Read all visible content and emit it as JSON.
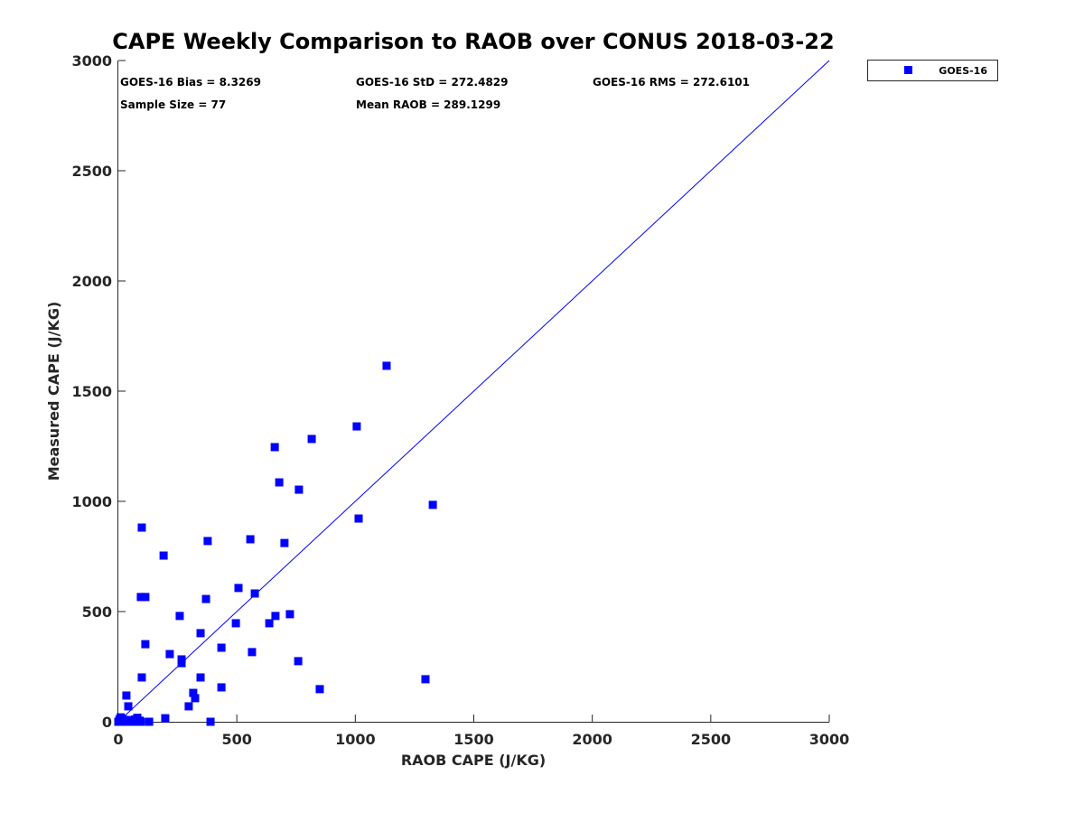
{
  "chart_data": {
    "type": "scatter",
    "title": "CAPE Weekly Comparison to RAOB over CONUS 2018-03-22",
    "xlabel": "RAOB CAPE (J/KG)",
    "ylabel": "Measured CAPE (J/KG)",
    "xlim": [
      0,
      3000
    ],
    "ylim": [
      0,
      3000
    ],
    "xticks": [
      "0",
      "500",
      "1000",
      "1500",
      "2000",
      "2500",
      "3000"
    ],
    "yticks": [
      "0",
      "500",
      "1000",
      "1500",
      "2000",
      "2500",
      "3000"
    ],
    "grid": false,
    "legend_position": "outside-top-right",
    "reference_line": {
      "name": "1:1 line",
      "color": "#0000ff"
    },
    "stats": {
      "bias": "GOES-16 Bias = 8.3269",
      "std": "GOES-16 StD = 272.4829",
      "rms": "GOES-16 RMS = 272.6101",
      "sample": "Sample Size = 77",
      "mean": "Mean RAOB = 289.1299"
    },
    "series": [
      {
        "name": "GOES-16",
        "color": "#0000ff",
        "points": [
          [
            99,
            881
          ],
          [
            191,
            754
          ],
          [
            377,
            820
          ],
          [
            557,
            828
          ],
          [
            701,
            811
          ],
          [
            95,
            566
          ],
          [
            114,
            566
          ],
          [
            370,
            557
          ],
          [
            507,
            607
          ],
          [
            576,
            582
          ],
          [
            259,
            480
          ],
          [
            496,
            447
          ],
          [
            637,
            447
          ],
          [
            663,
            480
          ],
          [
            724,
            488
          ],
          [
            114,
            352
          ],
          [
            347,
            402
          ],
          [
            435,
            336
          ],
          [
            564,
            316
          ],
          [
            217,
            307
          ],
          [
            267,
            283
          ],
          [
            267,
            266
          ],
          [
            759,
            275
          ],
          [
            99,
            201
          ],
          [
            347,
            201
          ],
          [
            435,
            156
          ],
          [
            316,
            131
          ],
          [
            324,
            107
          ],
          [
            297,
            70
          ],
          [
            34,
            119
          ],
          [
            42,
            70
          ],
          [
            198,
            16
          ],
          [
            389,
            0
          ],
          [
            850,
            148
          ],
          [
            1296,
            193
          ],
          [
            1327,
            984
          ],
          [
            1014,
            922
          ],
          [
            1006,
            1340
          ],
          [
            816,
            1283
          ],
          [
            660,
            1246
          ],
          [
            679,
            1086
          ],
          [
            762,
            1053
          ],
          [
            1132,
            1615
          ],
          [
            130,
            0
          ],
          [
            0,
            0
          ],
          [
            5,
            10
          ],
          [
            10,
            20
          ],
          [
            15,
            0
          ],
          [
            20,
            5
          ],
          [
            25,
            0
          ],
          [
            30,
            0
          ],
          [
            35,
            8
          ],
          [
            40,
            0
          ],
          [
            45,
            0
          ],
          [
            50,
            0
          ],
          [
            55,
            3
          ],
          [
            60,
            0
          ],
          [
            65,
            0
          ],
          [
            70,
            10
          ],
          [
            75,
            0
          ],
          [
            80,
            18
          ],
          [
            85,
            0
          ],
          [
            90,
            5
          ],
          [
            95,
            0
          ],
          [
            2,
            0
          ],
          [
            8,
            0
          ],
          [
            12,
            4
          ],
          [
            18,
            12
          ],
          [
            22,
            0
          ],
          [
            28,
            2
          ],
          [
            33,
            0
          ],
          [
            38,
            0
          ],
          [
            48,
            6
          ],
          [
            58,
            0
          ],
          [
            68,
            0
          ],
          [
            78,
            4
          ],
          [
            88,
            0
          ]
        ]
      }
    ]
  }
}
